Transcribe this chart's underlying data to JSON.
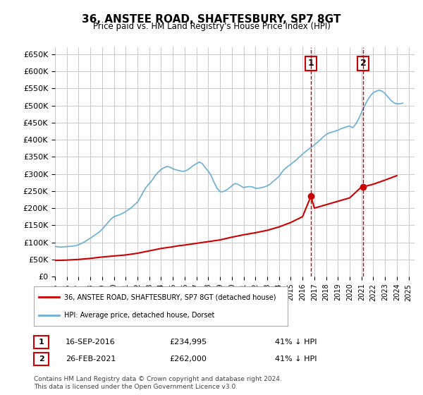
{
  "title": "36, ANSTEE ROAD, SHAFTESBURY, SP7 8GT",
  "subtitle": "Price paid vs. HM Land Registry's House Price Index (HPI)",
  "ylabel_prefix": "£",
  "ylim": [
    0,
    670000
  ],
  "yticks": [
    0,
    50000,
    100000,
    150000,
    200000,
    250000,
    300000,
    350000,
    400000,
    450000,
    500000,
    550000,
    600000,
    650000
  ],
  "xlim_start": 1995.0,
  "xlim_end": 2025.5,
  "hpi_color": "#6baed6",
  "price_color": "#cc0000",
  "marker1_date": 2016.71,
  "marker1_price": 234995,
  "marker1_label": "16-SEP-2016",
  "marker1_pct": "41% ↓ HPI",
  "marker2_date": 2021.15,
  "marker2_price": 262000,
  "marker2_label": "26-FEB-2021",
  "marker2_pct": "41% ↓ HPI",
  "legend_line1": "36, ANSTEE ROAD, SHAFTESBURY, SP7 8GT (detached house)",
  "legend_line2": "HPI: Average price, detached house, Dorset",
  "footnote": "Contains HM Land Registry data © Crown copyright and database right 2024.\nThis data is licensed under the Open Government Licence v3.0.",
  "background_color": "#ffffff",
  "grid_color": "#cccccc",
  "hpi_data_x": [
    1995.0,
    1995.25,
    1995.5,
    1995.75,
    1996.0,
    1996.25,
    1996.5,
    1996.75,
    1997.0,
    1997.25,
    1997.5,
    1997.75,
    1998.0,
    1998.25,
    1998.5,
    1998.75,
    1999.0,
    1999.25,
    1999.5,
    1999.75,
    2000.0,
    2000.25,
    2000.5,
    2000.75,
    2001.0,
    2001.25,
    2001.5,
    2001.75,
    2002.0,
    2002.25,
    2002.5,
    2002.75,
    2003.0,
    2003.25,
    2003.5,
    2003.75,
    2004.0,
    2004.25,
    2004.5,
    2004.75,
    2005.0,
    2005.25,
    2005.5,
    2005.75,
    2006.0,
    2006.25,
    2006.5,
    2006.75,
    2007.0,
    2007.25,
    2007.5,
    2007.75,
    2008.0,
    2008.25,
    2008.5,
    2008.75,
    2009.0,
    2009.25,
    2009.5,
    2009.75,
    2010.0,
    2010.25,
    2010.5,
    2010.75,
    2011.0,
    2011.25,
    2011.5,
    2011.75,
    2012.0,
    2012.25,
    2012.5,
    2012.75,
    2013.0,
    2013.25,
    2013.5,
    2013.75,
    2014.0,
    2014.25,
    2014.5,
    2014.75,
    2015.0,
    2015.25,
    2015.5,
    2015.75,
    2016.0,
    2016.25,
    2016.5,
    2016.75,
    2017.0,
    2017.25,
    2017.5,
    2017.75,
    2018.0,
    2018.25,
    2018.5,
    2018.75,
    2019.0,
    2019.25,
    2019.5,
    2019.75,
    2020.0,
    2020.25,
    2020.5,
    2020.75,
    2021.0,
    2021.25,
    2021.5,
    2021.75,
    2022.0,
    2022.25,
    2022.5,
    2022.75,
    2023.0,
    2023.25,
    2023.5,
    2023.75,
    2024.0,
    2024.25,
    2024.5
  ],
  "hpi_data_y": [
    88000,
    87000,
    86000,
    87000,
    87500,
    88000,
    89000,
    90000,
    93000,
    97000,
    101000,
    107000,
    112000,
    118000,
    124000,
    130000,
    138000,
    148000,
    158000,
    168000,
    175000,
    178000,
    181000,
    185000,
    190000,
    196000,
    202000,
    210000,
    218000,
    232000,
    248000,
    262000,
    272000,
    282000,
    295000,
    305000,
    313000,
    318000,
    322000,
    320000,
    315000,
    312000,
    310000,
    308000,
    308000,
    312000,
    318000,
    325000,
    330000,
    335000,
    330000,
    318000,
    308000,
    295000,
    275000,
    258000,
    248000,
    248000,
    252000,
    258000,
    265000,
    272000,
    270000,
    265000,
    260000,
    262000,
    263000,
    262000,
    258000,
    258000,
    260000,
    262000,
    265000,
    270000,
    278000,
    285000,
    293000,
    305000,
    315000,
    322000,
    328000,
    335000,
    342000,
    350000,
    358000,
    365000,
    372000,
    378000,
    385000,
    392000,
    400000,
    408000,
    415000,
    420000,
    422000,
    425000,
    428000,
    432000,
    435000,
    438000,
    440000,
    435000,
    445000,
    460000,
    480000,
    498000,
    515000,
    528000,
    538000,
    542000,
    545000,
    542000,
    535000,
    525000,
    515000,
    508000,
    505000,
    505000,
    507000
  ],
  "price_data_x": [
    1995.0,
    1995.5,
    1996.0,
    1997.0,
    1998.0,
    1999.0,
    2000.0,
    2001.0,
    2002.0,
    2003.0,
    2004.0,
    2005.0,
    2005.5,
    2006.0,
    2007.0,
    2008.0,
    2009.0,
    2010.0,
    2011.0,
    2012.0,
    2013.0,
    2014.0,
    2015.0,
    2016.0,
    2016.71,
    2017.0,
    2018.0,
    2019.0,
    2020.0,
    2021.0,
    2021.15,
    2022.0,
    2023.0,
    2024.0
  ],
  "price_data_y": [
    47000,
    47500,
    48000,
    50000,
    53000,
    57000,
    60000,
    63000,
    68000,
    75000,
    82000,
    87000,
    90000,
    92000,
    97000,
    102000,
    107000,
    115000,
    122000,
    128000,
    135000,
    145000,
    158000,
    175000,
    234995,
    200000,
    210000,
    220000,
    230000,
    262000,
    262000,
    270000,
    282000,
    295000
  ]
}
